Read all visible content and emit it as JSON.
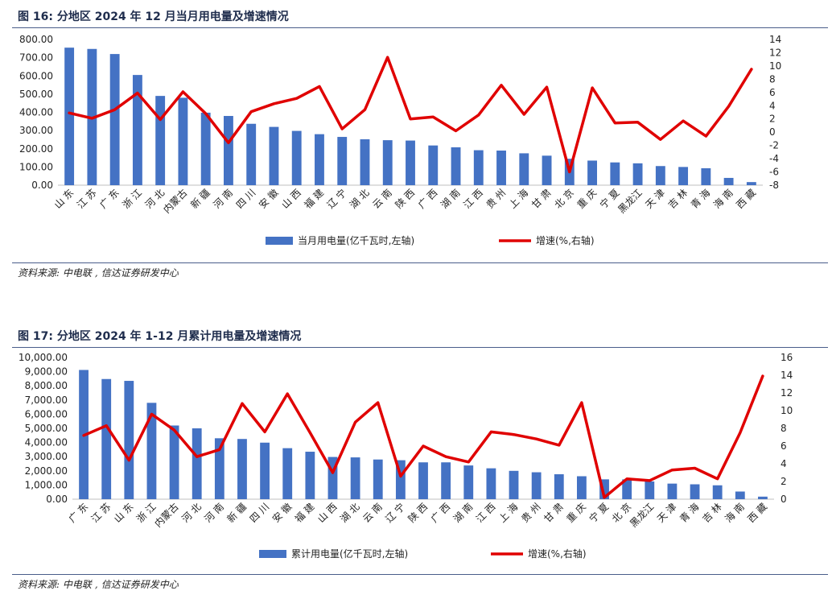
{
  "source_label": "资料来源:",
  "source_text": "中电联",
  "source_text2": "信达证券研发中心",
  "chart_data": [
    {
      "figure_label": "图 16:",
      "title": "分地区 2024 年 12 月当月用电量及增速情况",
      "type": "bar+line",
      "categories": [
        "山东",
        "江苏",
        "广东",
        "浙江",
        "河北",
        "内蒙古",
        "新疆",
        "河南",
        "四川",
        "安徽",
        "山西",
        "福建",
        "辽宁",
        "湖北",
        "云南",
        "陕西",
        "广西",
        "湖南",
        "江西",
        "贵州",
        "上海",
        "甘肃",
        "北京",
        "重庆",
        "宁夏",
        "黑龙江",
        "天津",
        "吉林",
        "青海",
        "海南",
        "西藏"
      ],
      "series": [
        {
          "name": "当月用电量(亿千瓦时,左轴)",
          "type": "bar",
          "axis": "left",
          "values": [
            755,
            748,
            720,
            605,
            490,
            480,
            398,
            380,
            337,
            320,
            298,
            280,
            265,
            252,
            247,
            245,
            218,
            208,
            192,
            190,
            175,
            162,
            145,
            135,
            125,
            120,
            105,
            100,
            93,
            40,
            17
          ]
        },
        {
          "name": "增速(%,右轴)",
          "type": "line",
          "axis": "right",
          "values": [
            2.9,
            2.1,
            3.4,
            5.9,
            1.9,
            6.1,
            2.8,
            -1.6,
            3.1,
            4.3,
            5.1,
            6.9,
            0.5,
            3.4,
            11.3,
            2.0,
            2.3,
            0.2,
            2.6,
            7.1,
            2.7,
            6.8,
            -6.0,
            6.7,
            1.4,
            1.5,
            -1.1,
            1.7,
            -0.6,
            3.9,
            9.5
          ]
        }
      ],
      "left_axis": {
        "min": 0,
        "max": 800,
        "ticks": [
          "0.00",
          "100.00",
          "200.00",
          "300.00",
          "400.00",
          "500.00",
          "600.00",
          "700.00",
          "800.00"
        ]
      },
      "right_axis": {
        "min": -8,
        "max": 14,
        "ticks": [
          "-8",
          "-6",
          "-4",
          "-2",
          "0",
          "2",
          "4",
          "6",
          "8",
          "10",
          "12",
          "14"
        ]
      },
      "grid": false,
      "legend": "bottom",
      "colors": {
        "bar": "#4472c4",
        "line": "#e00000"
      }
    },
    {
      "figure_label": "图 17:",
      "title": "分地区 2024 年 1-12 月累计用电量及增速情况",
      "type": "bar+line",
      "categories": [
        "广东",
        "江苏",
        "山东",
        "浙江",
        "内蒙古",
        "河北",
        "河南",
        "新疆",
        "四川",
        "安徽",
        "福建",
        "山西",
        "湖北",
        "云南",
        "辽宁",
        "陕西",
        "广西",
        "湖南",
        "江西",
        "上海",
        "贵州",
        "甘肃",
        "重庆",
        "宁夏",
        "北京",
        "黑龙江",
        "天津",
        "青海",
        "吉林",
        "海南",
        "西藏"
      ],
      "series": [
        {
          "name": "累计用电量(亿千瓦时,左轴)",
          "type": "bar",
          "axis": "left",
          "values": [
            9120,
            8480,
            8350,
            6800,
            5200,
            5000,
            4300,
            4250,
            3990,
            3600,
            3350,
            2980,
            2950,
            2800,
            2750,
            2600,
            2600,
            2380,
            2180,
            2000,
            1900,
            1760,
            1620,
            1400,
            1400,
            1250,
            1100,
            1050,
            980,
            540,
            180
          ]
        },
        {
          "name": "增速(%,右轴)",
          "type": "line",
          "axis": "right",
          "values": [
            7.2,
            8.3,
            4.4,
            9.6,
            7.8,
            4.8,
            5.6,
            10.8,
            7.6,
            11.9,
            7.5,
            3.0,
            8.7,
            10.9,
            2.6,
            6.0,
            4.8,
            4.2,
            7.6,
            7.3,
            6.8,
            6.1,
            10.9,
            0.2,
            2.3,
            2.1,
            3.3,
            3.5,
            2.3,
            7.5,
            13.9
          ]
        }
      ],
      "left_axis": {
        "min": 0,
        "max": 10000,
        "ticks": [
          "0.00",
          "1,000.00",
          "2,000.00",
          "3,000.00",
          "4,000.00",
          "5,000.00",
          "6,000.00",
          "7,000.00",
          "8,000.00",
          "9,000.00",
          "10,000.00"
        ]
      },
      "right_axis": {
        "min": 0,
        "max": 16,
        "ticks": [
          "0",
          "2",
          "4",
          "6",
          "8",
          "10",
          "12",
          "14",
          "16"
        ]
      },
      "grid": false,
      "legend": "bottom",
      "colors": {
        "bar": "#4472c4",
        "line": "#e00000"
      }
    }
  ]
}
